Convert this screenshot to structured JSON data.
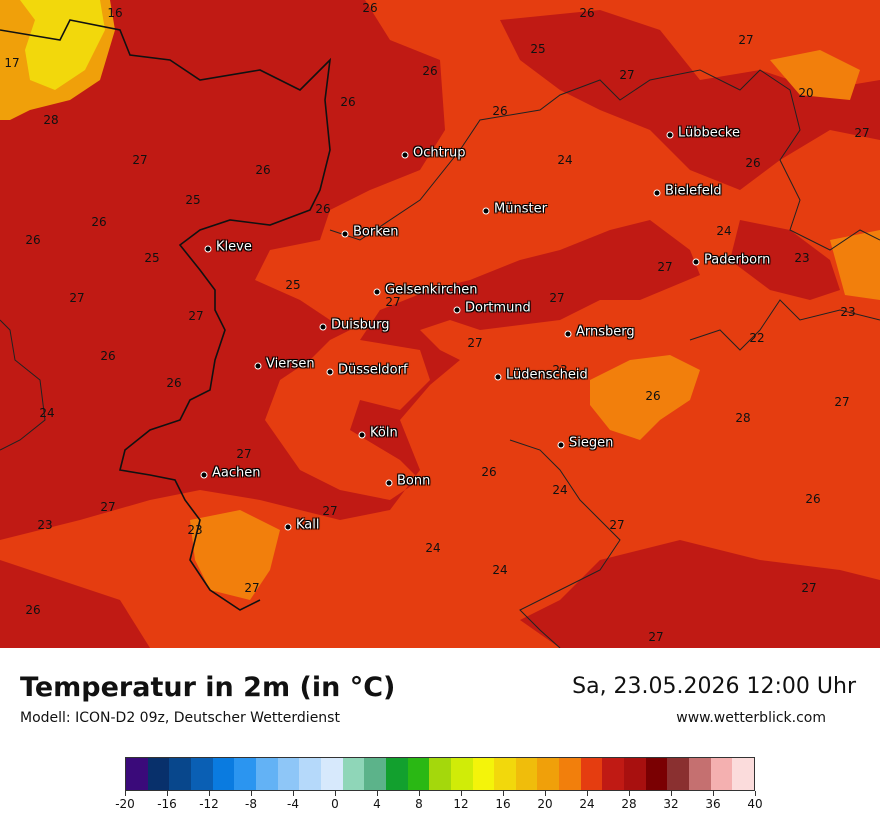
{
  "title": "Temperatur in 2m (in °C)",
  "model": "Modell: ICON-D2 09z, Deutscher Wetterdienst",
  "datetime": "Sa, 23.05.2026 12:00 Uhr",
  "website": "www.wetterblick.com",
  "cities": [
    {
      "name": "Lübbecke"
    },
    {
      "name": "Ochtrup"
    },
    {
      "name": "Bielefeld"
    },
    {
      "name": "Münster"
    },
    {
      "name": "Borken"
    },
    {
      "name": "Kleve"
    },
    {
      "name": "Paderborn"
    },
    {
      "name": "Gelsenkirchen"
    },
    {
      "name": "Dortmund"
    },
    {
      "name": "Duisburg"
    },
    {
      "name": "Arnsberg"
    },
    {
      "name": "Viersen"
    },
    {
      "name": "Düsseldorf"
    },
    {
      "name": "Lüdenscheid"
    },
    {
      "name": "Köln"
    },
    {
      "name": "Siegen"
    },
    {
      "name": "Aachen"
    },
    {
      "name": "Bonn"
    },
    {
      "name": "Kall"
    }
  ],
  "isotherm_labels": [
    "16",
    "17",
    "26",
    "26",
    "25",
    "27",
    "26",
    "20",
    "27",
    "28",
    "26",
    "26",
    "24",
    "27",
    "26",
    "26",
    "27",
    "25",
    "26",
    "25",
    "24",
    "23",
    "26",
    "25",
    "27",
    "27",
    "27",
    "26",
    "27",
    "27",
    "26",
    "26",
    "23",
    "22",
    "23",
    "26",
    "28",
    "27",
    "24",
    "27",
    "27",
    "23",
    "27",
    "24",
    "26",
    "27",
    "23",
    "24",
    "26",
    "27",
    "27",
    "24",
    "27",
    "26",
    "27"
  ],
  "colorbar": {
    "ticks": [
      "-20",
      "-16",
      "-12",
      "-8",
      "-4",
      "0",
      "4",
      "8",
      "12",
      "16",
      "20",
      "24",
      "28",
      "32",
      "36",
      "40"
    ],
    "colors": [
      "#3a0a7a",
      "#08306b",
      "#08478c",
      "#0a5fb4",
      "#0a7be0",
      "#2b95f0",
      "#63b2f5",
      "#8ec6f7",
      "#b5d9fa",
      "#d7e9fc",
      "#8fd6b8",
      "#5cb38a",
      "#12a02e",
      "#2ab814",
      "#a4d80c",
      "#d0ec08",
      "#f4f40a",
      "#f2d80c",
      "#f0bd0b",
      "#f0a00a",
      "#f27f0c",
      "#e53d10",
      "#c01a14",
      "#a8100f",
      "#7a0002",
      "#8a3030",
      "#c57070",
      "#f4b0b0",
      "#fbdcdc"
    ]
  }
}
